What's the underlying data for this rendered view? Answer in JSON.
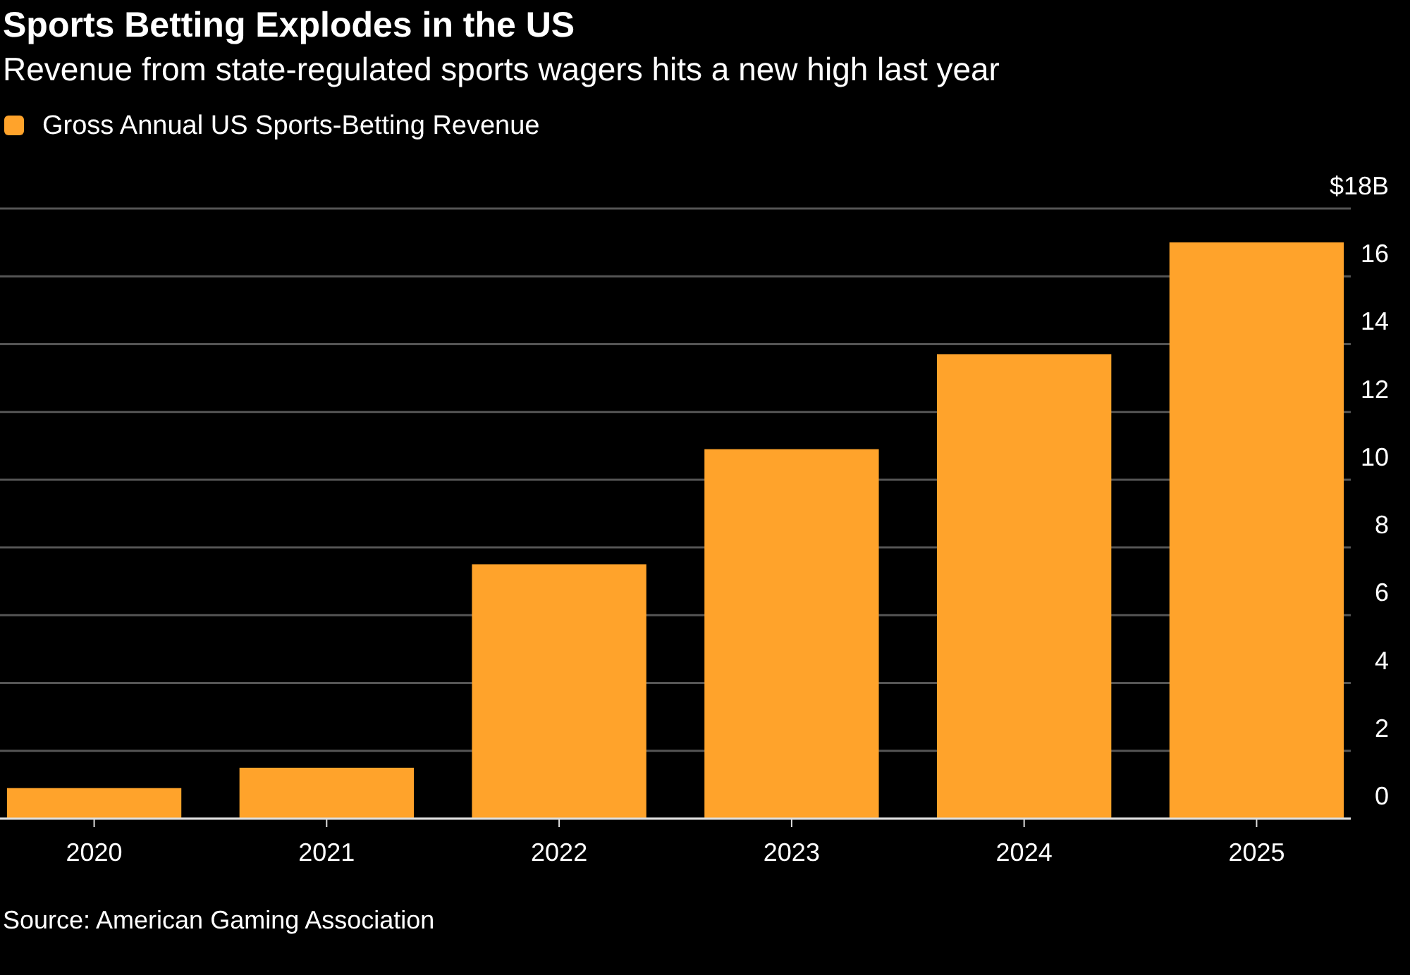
{
  "chart_data": {
    "type": "bar",
    "title": "Sports Betting Explodes in the US",
    "subtitle": "Revenue from state-regulated sports wagers hits a new high last year",
    "categories": [
      "2020",
      "2021",
      "2022",
      "2023",
      "2024",
      "2025"
    ],
    "series": [
      {
        "name": "Gross Annual US Sports-Betting Revenue",
        "color": "#ffa32b",
        "values": [
          0.9,
          1.5,
          7.5,
          10.9,
          13.7,
          17.0
        ]
      }
    ],
    "ylim": [
      0,
      18
    ],
    "yticks": [
      0,
      2,
      4,
      6,
      8,
      10,
      12,
      14,
      16,
      {
        "value": 18,
        "label": "$18B"
      }
    ],
    "grid": "y",
    "legend": "top left",
    "annotations": [
      "Source: American Gaming Association"
    ]
  }
}
